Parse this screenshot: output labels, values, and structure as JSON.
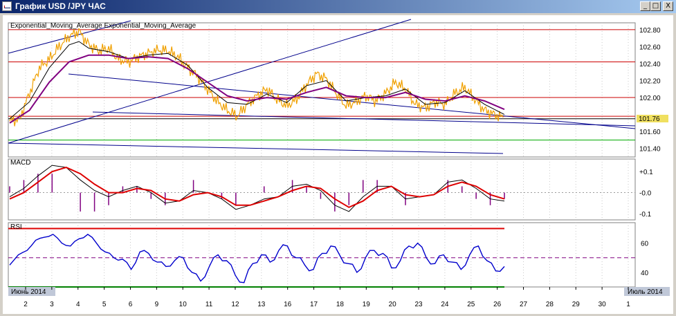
{
  "window": {
    "title": "График USD /JPY ЧАС",
    "controls": [
      "_",
      "□",
      "X"
    ]
  },
  "colors": {
    "price": "#f0a000",
    "ema_fast": "#000000",
    "ema_slow": "#800080",
    "channel": "#00008b",
    "hline": "#cc0000",
    "support": "#00aa00",
    "macd": "#000000",
    "signal": "#dd0000",
    "hist": "#800080",
    "rsi": "#0000cc",
    "rsi_mid": "#800080",
    "rsi_high": "#dd0000",
    "rsi_low": "#008000"
  },
  "chart_data": [
    {
      "type": "line",
      "panel": "price",
      "title": "Exponential_Moving_Average Exponential_Moving_Average",
      "ylim": [
        101.3,
        102.88
      ],
      "y_ticks": [
        "102.80",
        "102.60",
        "102.40",
        "102.20",
        "102.00",
        "101.60",
        "101.40"
      ],
      "last_price": "101.76",
      "horizontal_levels": [
        102.8,
        102.42,
        102.0,
        101.78,
        101.75,
        101.5
      ],
      "series": [
        {
          "name": "Exponential_Moving_Average",
          "values": []
        },
        {
          "name": "Exponential_Moving_Average",
          "values": []
        }
      ],
      "price_path": [
        [
          0,
          101.72
        ],
        [
          0.4,
          101.75
        ],
        [
          0.8,
          102.05
        ],
        [
          1.2,
          102.35
        ],
        [
          1.6,
          102.45
        ],
        [
          2.0,
          102.6
        ],
        [
          2.4,
          102.72
        ],
        [
          2.8,
          102.78
        ],
        [
          3.2,
          102.62
        ],
        [
          3.6,
          102.55
        ],
        [
          4.0,
          102.58
        ],
        [
          4.4,
          102.45
        ],
        [
          4.8,
          102.42
        ],
        [
          5.2,
          102.48
        ],
        [
          5.6,
          102.52
        ],
        [
          6.0,
          102.56
        ],
        [
          6.4,
          102.55
        ],
        [
          6.8,
          102.48
        ],
        [
          7.2,
          102.35
        ],
        [
          7.6,
          102.25
        ],
        [
          8.0,
          102.1
        ],
        [
          8.4,
          101.95
        ],
        [
          8.8,
          101.85
        ],
        [
          9.2,
          101.78
        ],
        [
          9.6,
          101.92
        ],
        [
          10.0,
          102.02
        ],
        [
          10.4,
          102.1
        ],
        [
          10.8,
          101.98
        ],
        [
          11.2,
          101.9
        ],
        [
          11.6,
          101.98
        ],
        [
          12.0,
          102.15
        ],
        [
          12.4,
          102.28
        ],
        [
          12.8,
          102.22
        ],
        [
          13.2,
          102.05
        ],
        [
          13.6,
          101.9
        ],
        [
          14.0,
          101.95
        ],
        [
          14.4,
          102.02
        ],
        [
          14.8,
          101.96
        ],
        [
          15.2,
          102.05
        ],
        [
          15.6,
          102.18
        ],
        [
          16.0,
          102.1
        ],
        [
          16.4,
          101.92
        ],
        [
          16.8,
          101.88
        ],
        [
          17.2,
          101.95
        ],
        [
          17.6,
          101.92
        ],
        [
          18.0,
          102.05
        ],
        [
          18.4,
          102.12
        ],
        [
          18.8,
          101.98
        ],
        [
          19.2,
          101.85
        ],
        [
          19.6,
          101.8
        ],
        [
          20.0,
          101.76
        ]
      ],
      "ema_fast_path": [
        [
          0,
          101.75
        ],
        [
          0.8,
          101.95
        ],
        [
          1.6,
          102.35
        ],
        [
          2.4,
          102.62
        ],
        [
          2.8,
          102.66
        ],
        [
          3.2,
          102.58
        ],
        [
          4.0,
          102.54
        ],
        [
          4.8,
          102.46
        ],
        [
          5.6,
          102.5
        ],
        [
          6.4,
          102.52
        ],
        [
          7.2,
          102.38
        ],
        [
          8.0,
          102.12
        ],
        [
          8.8,
          101.94
        ],
        [
          9.6,
          101.92
        ],
        [
          10.4,
          102.04
        ],
        [
          11.2,
          101.94
        ],
        [
          12.0,
          102.14
        ],
        [
          12.8,
          102.2
        ],
        [
          13.6,
          101.96
        ],
        [
          14.4,
          102.0
        ],
        [
          15.2,
          102.02
        ],
        [
          16.0,
          102.1
        ],
        [
          16.8,
          101.92
        ],
        [
          17.6,
          101.94
        ],
        [
          18.4,
          102.08
        ],
        [
          19.2,
          101.92
        ],
        [
          20.0,
          101.8
        ]
      ],
      "ema_slow_path": [
        [
          0,
          101.7
        ],
        [
          0.8,
          101.85
        ],
        [
          1.6,
          102.18
        ],
        [
          2.4,
          102.42
        ],
        [
          3.2,
          102.5
        ],
        [
          4.0,
          102.5
        ],
        [
          4.8,
          102.46
        ],
        [
          5.6,
          102.48
        ],
        [
          6.4,
          102.46
        ],
        [
          7.2,
          102.34
        ],
        [
          8.0,
          102.18
        ],
        [
          8.8,
          102.02
        ],
        [
          9.6,
          101.96
        ],
        [
          10.4,
          102.0
        ],
        [
          11.2,
          101.98
        ],
        [
          12.0,
          102.06
        ],
        [
          12.8,
          102.12
        ],
        [
          13.6,
          102.02
        ],
        [
          14.4,
          102.0
        ],
        [
          15.2,
          102.0
        ],
        [
          16.0,
          102.06
        ],
        [
          16.8,
          101.98
        ],
        [
          17.6,
          101.96
        ],
        [
          18.4,
          102.02
        ],
        [
          19.2,
          101.96
        ],
        [
          20.0,
          101.86
        ]
      ]
    },
    {
      "type": "line",
      "panel": "macd",
      "title": "MACD",
      "ylim": [
        -0.13,
        0.16
      ],
      "y_ticks": [
        "+0.1",
        "-0.0",
        "-0.1"
      ],
      "series": [
        {
          "name": "",
          "values": [
            -0.02,
            0.02,
            0.08,
            0.13,
            0.12,
            0.06,
            0.01,
            -0.02,
            0.01,
            0.03,
            0.0,
            -0.05,
            -0.04,
            0.01,
            0.0,
            -0.03,
            -0.08,
            -0.06,
            -0.03,
            -0.02,
            0.03,
            0.04,
            0.01,
            -0.06,
            -0.09,
            -0.02,
            0.03,
            0.03,
            -0.03,
            -0.02,
            -0.01,
            0.05,
            0.06,
            0.02,
            -0.03,
            -0.04
          ]
        },
        {
          "name": "",
          "values": [
            -0.03,
            0.0,
            0.05,
            0.1,
            0.12,
            0.09,
            0.04,
            0.0,
            0.0,
            0.02,
            0.01,
            -0.03,
            -0.04,
            -0.01,
            0.0,
            -0.02,
            -0.06,
            -0.06,
            -0.04,
            -0.02,
            0.01,
            0.03,
            0.02,
            -0.03,
            -0.07,
            -0.04,
            0.01,
            0.03,
            -0.01,
            -0.02,
            -0.01,
            0.03,
            0.05,
            0.03,
            -0.01,
            -0.03
          ]
        }
      ]
    },
    {
      "type": "line",
      "panel": "rsi",
      "title": "RSI",
      "ylim": [
        30,
        74
      ],
      "y_ticks": [
        "60",
        "40"
      ],
      "levels": [
        70,
        50,
        30
      ],
      "series": [
        {
          "name": "",
          "values": [
            45,
            52,
            55,
            62,
            64,
            66,
            60,
            58,
            63,
            66,
            60,
            54,
            50,
            49,
            42,
            54,
            53,
            47,
            44,
            48,
            50,
            40,
            34,
            44,
            52,
            48,
            38,
            33,
            46,
            52,
            47,
            55,
            58,
            50,
            45,
            42,
            53,
            58,
            52,
            46,
            40,
            50,
            55,
            53,
            43,
            48,
            58,
            60,
            50,
            46,
            52,
            47,
            42,
            52,
            58,
            48,
            41,
            44
          ]
        }
      ]
    }
  ],
  "x_axis": {
    "labels": [
      "2",
      "3",
      "4",
      "5",
      "6",
      "9",
      "10",
      "11",
      "12",
      "13",
      "16",
      "17",
      "18",
      "19",
      "20",
      "23",
      "24",
      "25",
      "26",
      "27",
      "28",
      "29",
      "30",
      "1"
    ],
    "start_label": "Июнь 2014",
    "end_label": "Июль 2014"
  }
}
